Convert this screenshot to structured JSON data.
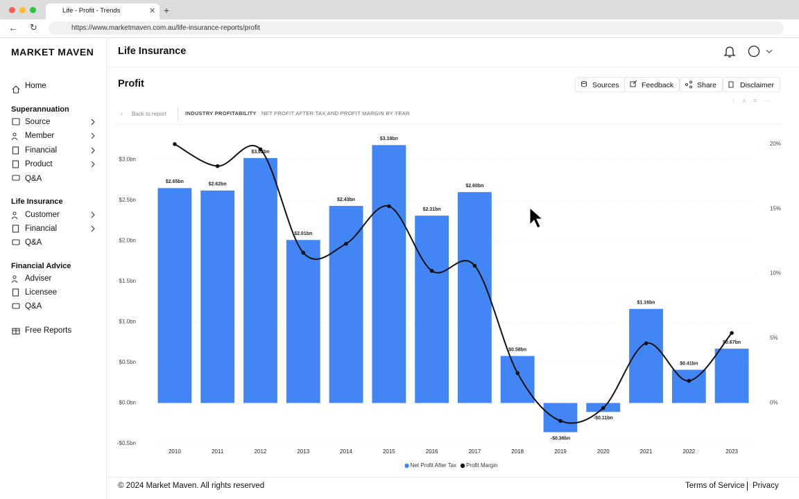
{
  "browser": {
    "tab_title": "Life - Profit - Trends",
    "url": "https://www.marketmaven.com.au/life-insurance-reports/profit"
  },
  "sidebar": {
    "brand": "MARKET MAVEN",
    "home": "Home",
    "sections": [
      {
        "title": "Superannuation",
        "items": [
          "Source",
          "Member",
          "Financial",
          "Product",
          "Q&A"
        ]
      },
      {
        "title": "Life Insurance",
        "items": [
          "Customer",
          "Financial",
          "Q&A"
        ]
      },
      {
        "title": "Financial Advice",
        "items": [
          "Adviser",
          "Licensee",
          "Q&A"
        ]
      }
    ],
    "free_reports": "Free Reports"
  },
  "header": {
    "title": "Life Insurance"
  },
  "page": {
    "title": "Profit",
    "buttons": [
      "Sources",
      "Feedback",
      "Share",
      "Disclaimer"
    ],
    "breadcrumb": {
      "back": "Back to report",
      "section": "INDUSTRY PROFITABILITY",
      "subtitle": "NET PROFIT AFTER TAX AND PROFIT MARGIN BY YEAR"
    }
  },
  "chart_data": {
    "type": "bar",
    "categories": [
      "2010",
      "2011",
      "2012",
      "2013",
      "2014",
      "2015",
      "2016",
      "2017",
      "2018",
      "2019",
      "2020",
      "2021",
      "2022",
      "2023"
    ],
    "series": [
      {
        "name": "Net Profit After Tax",
        "color": "#4285f4",
        "type": "bar",
        "values": [
          2.65,
          2.62,
          3.02,
          2.01,
          2.43,
          3.18,
          2.31,
          2.6,
          0.58,
          -0.36,
          -0.11,
          1.16,
          0.41,
          0.67
        ],
        "value_labels": [
          "$2.65bn",
          "$2.62bn",
          "$3.02bn",
          "$2.01bn",
          "$2.43bn",
          "$3.18bn",
          "$2.31bn",
          "$2.60bn",
          "$0.58bn",
          "-$0.36bn",
          "-$0.11bn",
          "$1.16bn",
          "$0.41bn",
          "$0.67bn"
        ]
      },
      {
        "name": "Profit Margin",
        "color": "#111111",
        "type": "line",
        "axis": "y2",
        "values": [
          20.0,
          18.3,
          19.6,
          11.6,
          12.3,
          15.2,
          10.2,
          10.6,
          2.3,
          -1.4,
          -0.4,
          4.6,
          1.7,
          5.4
        ]
      }
    ],
    "ylim": [
      -0.5,
      3.2
    ],
    "yticks": [
      {
        "value": -0.5,
        "label": "-$0.5bn"
      },
      {
        "value": 0,
        "label": "$0.0bn"
      },
      {
        "value": 0.5,
        "label": "$0.5bn"
      },
      {
        "value": 1.0,
        "label": "$1.0bn"
      },
      {
        "value": 1.5,
        "label": "$1.5bn"
      },
      {
        "value": 2.0,
        "label": "$2.0bn"
      },
      {
        "value": 2.5,
        "label": "$2.5bn"
      },
      {
        "value": 3.0,
        "label": "$3.0bn"
      }
    ],
    "y2lim": [
      -3.15,
      20.05
    ],
    "y2ticks": [
      {
        "value": 0,
        "label": "0%"
      },
      {
        "value": 5,
        "label": "5%"
      },
      {
        "value": 10,
        "label": "10%"
      },
      {
        "value": 15,
        "label": "15%"
      },
      {
        "value": 20,
        "label": "20%"
      }
    ],
    "grid": true,
    "legend": "bottom"
  },
  "footer": {
    "copyright": "© 2024 Market Maven. All rights reserved",
    "links": [
      "Terms of Service",
      "Privacy"
    ]
  }
}
